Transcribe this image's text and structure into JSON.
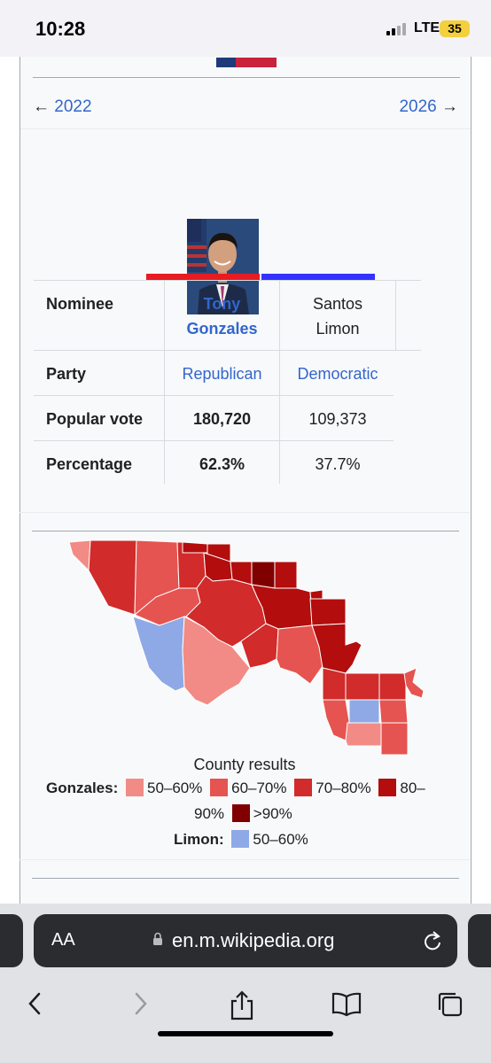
{
  "status_bar": {
    "time": "10:28",
    "network": "LTE",
    "battery": "35"
  },
  "nav": {
    "prev_year": "2022",
    "next_year": "2026",
    "prev_arrow": "←",
    "next_arrow": "→"
  },
  "candidates": [
    {
      "name_line1": "Tony",
      "name_line2": "Gonzales",
      "party": "Republican",
      "popular_vote": "180,720",
      "percentage": "62.3%",
      "color": "#e81b23"
    },
    {
      "name_line1": "Santos",
      "name_line2": "Limon",
      "party": "Democratic",
      "popular_vote": "109,373",
      "percentage": "37.7%",
      "color": "#3333ff"
    }
  ],
  "rows": {
    "nominee": "Nominee",
    "party": "Party",
    "popular_vote": "Popular vote",
    "percentage": "Percentage"
  },
  "map": {
    "caption": "County results",
    "legend": {
      "gonzales_label": "Gonzales:",
      "r1": "50–60%",
      "r2": "60–70%",
      "r3": "70–80%",
      "r4a": "80–",
      "r4b": "90%",
      "r5": ">90%",
      "limon_label": "Limon:",
      "d1": "50–60%"
    },
    "colors": {
      "r50": "#f28b85",
      "r60": "#e55450",
      "r70": "#d12b2b",
      "r80": "#b30d0d",
      "r90": "#800000",
      "d50": "#8fa9e6"
    }
  },
  "browser": {
    "aa_label": "AA",
    "url": "en.m.wikipedia.org"
  }
}
